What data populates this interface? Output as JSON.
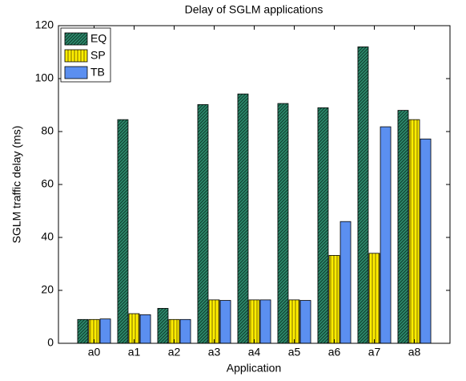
{
  "chart_data": {
    "type": "bar",
    "title": "Delay of SGLM applications",
    "xlabel": "Application",
    "ylabel": "SGLM traffic delay (ms)",
    "categories": [
      "a0",
      "a1",
      "a2",
      "a3",
      "a4",
      "a5",
      "a6",
      "a7",
      "a8"
    ],
    "series": [
      {
        "name": "EQ",
        "color": "#2e8b6e",
        "hatch": "diagonal",
        "values": [
          9,
          84.5,
          13.2,
          90.2,
          94.2,
          90.6,
          89,
          112,
          88
        ]
      },
      {
        "name": "SP",
        "color": "#ffee00",
        "hatch": "vertical",
        "values": [
          9,
          11.2,
          9,
          16.4,
          16.4,
          16.4,
          33.2,
          34,
          84.5
        ]
      },
      {
        "name": "TB",
        "color": "#5b8ff0",
        "hatch": "none",
        "values": [
          9.2,
          10.8,
          9,
          16.2,
          16.4,
          16.2,
          46,
          81.8,
          77.2
        ]
      }
    ],
    "ylim": [
      0,
      120
    ],
    "yticks": [
      0,
      20,
      40,
      60,
      80,
      100,
      120
    ],
    "grid": false,
    "legend": "upper left"
  }
}
